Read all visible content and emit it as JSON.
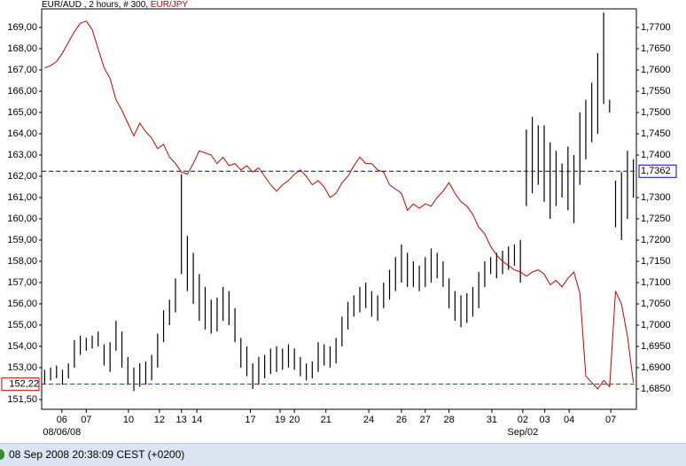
{
  "chart_data": {
    "type": "ohlc",
    "title": ", 2 hours, # 300,",
    "xlim": [
      0,
      100
    ],
    "xticks": [
      {
        "value": 3.4,
        "label": "06"
      },
      {
        "value": 7.5,
        "label": "07"
      },
      {
        "value": 14.6,
        "label": "10"
      },
      {
        "value": 19.8,
        "label": "12"
      },
      {
        "value": 23.5,
        "label": "13"
      },
      {
        "value": 26.1,
        "label": "14"
      },
      {
        "value": 35.1,
        "label": "17"
      },
      {
        "value": 40.1,
        "label": "19"
      },
      {
        "value": 42.5,
        "label": "20"
      },
      {
        "value": 47.8,
        "label": "21"
      },
      {
        "value": 55,
        "label": "24"
      },
      {
        "value": 60.5,
        "label": "26"
      },
      {
        "value": 64.5,
        "label": "27"
      },
      {
        "value": 68.5,
        "label": "28"
      },
      {
        "value": 75.7,
        "label": "31"
      },
      {
        "value": 80.9,
        "label": "02"
      },
      {
        "value": 84.6,
        "label": "03"
      },
      {
        "value": 88.7,
        "label": "04"
      },
      {
        "value": 95.7,
        "label": "07"
      }
    ],
    "xticks2": [
      {
        "value": 3.4,
        "label": "08/06/08"
      },
      {
        "value": 80.9,
        "label": "Sep/02"
      }
    ],
    "ylim": [
      151.04,
      169.875
    ],
    "yticks": [
      {
        "value": 151.5,
        "label": "151,50"
      },
      {
        "value": 153,
        "label": "153,00"
      },
      {
        "value": 154,
        "label": "154,00"
      },
      {
        "value": 155,
        "label": "155,00"
      },
      {
        "value": 156,
        "label": "156,00"
      },
      {
        "value": 157,
        "label": "157,00"
      },
      {
        "value": 158,
        "label": "158,00"
      },
      {
        "value": 159,
        "label": "159,00"
      },
      {
        "value": 160,
        "label": "160,00"
      },
      {
        "value": 161,
        "label": "161,00"
      },
      {
        "value": 162,
        "label": "162,00"
      },
      {
        "value": 163,
        "label": "163,00"
      },
      {
        "value": 164,
        "label": "164,00"
      },
      {
        "value": 165,
        "label": "165,00"
      },
      {
        "value": 166,
        "label": "166,00"
      },
      {
        "value": 167,
        "label": "167,00"
      },
      {
        "value": 168,
        "label": "168,00"
      },
      {
        "value": 169,
        "label": "169,00"
      }
    ],
    "y2lim": [
      1.68021,
      1.77438
    ],
    "y2ticks": [
      {
        "value": 1.685,
        "label": "1,6850"
      },
      {
        "value": 1.69,
        "label": "1,6900"
      },
      {
        "value": 1.695,
        "label": "1,6950"
      },
      {
        "value": 1.7,
        "label": "1,7000"
      },
      {
        "value": 1.705,
        "label": "1,7050"
      },
      {
        "value": 1.71,
        "label": "1,7100"
      },
      {
        "value": 1.715,
        "label": "1,7150"
      },
      {
        "value": 1.72,
        "label": "1,7200"
      },
      {
        "value": 1.725,
        "label": "1,7250"
      },
      {
        "value": 1.73,
        "label": "1,7300"
      },
      {
        "value": 1.74,
        "label": "1,7400"
      },
      {
        "value": 1.745,
        "label": "1,7450"
      },
      {
        "value": 1.75,
        "label": "1,7500"
      },
      {
        "value": 1.755,
        "label": "1,7550"
      },
      {
        "value": 1.76,
        "label": "1,7600"
      },
      {
        "value": 1.765,
        "label": "1,7650"
      },
      {
        "value": 1.77,
        "label": "1,7700"
      }
    ],
    "y_marker": {
      "value": 152.22,
      "label": "152,22",
      "color": "#cc0000"
    },
    "y2_marker": {
      "value": 1.7362,
      "label": "1,7362",
      "color": "#0000cc"
    },
    "grid": false,
    "series": [
      {
        "name": "EUR/AUD",
        "type": "ohlc",
        "axis": "y2",
        "color": "#000000",
        "high": [
          1.6895,
          1.69,
          1.6905,
          1.6895,
          1.691,
          1.6965,
          1.6975,
          1.697,
          1.6975,
          1.6985,
          1.6955,
          1.696,
          1.701,
          1.6985,
          1.6925,
          1.69,
          1.691,
          1.6915,
          1.693,
          1.698,
          1.7035,
          1.706,
          1.711,
          1.7355,
          1.721,
          1.717,
          1.712,
          1.709,
          1.706,
          1.7065,
          1.709,
          1.708,
          1.704,
          1.697,
          1.695,
          1.691,
          1.6925,
          1.693,
          1.6945,
          1.695,
          1.6945,
          1.6955,
          1.6945,
          1.6925,
          1.691,
          1.6915,
          1.696,
          1.6955,
          1.695,
          1.697,
          1.702,
          1.7055,
          1.707,
          1.709,
          1.71,
          1.708,
          1.707,
          1.71,
          1.713,
          1.716,
          1.719,
          1.717,
          1.715,
          1.714,
          1.716,
          1.718,
          1.717,
          1.715,
          1.711,
          1.708,
          1.707,
          1.7075,
          1.709,
          1.7125,
          1.715,
          1.716,
          1.717,
          1.7175,
          1.7185,
          1.719,
          1.72,
          1.746,
          1.749,
          1.747,
          1.747,
          1.743,
          1.741,
          1.738,
          1.742,
          1.74,
          1.75,
          1.753,
          1.757,
          1.764,
          1.7735,
          1.753,
          1.734,
          1.736,
          1.741,
          1.739
        ],
        "low": [
          1.686,
          1.687,
          1.6875,
          1.686,
          1.6875,
          1.69,
          1.693,
          1.694,
          1.6945,
          1.695,
          1.6905,
          1.689,
          1.694,
          1.69,
          1.686,
          1.6845,
          1.6855,
          1.686,
          1.687,
          1.69,
          1.696,
          1.7,
          1.703,
          1.712,
          1.708,
          1.705,
          1.701,
          1.699,
          1.698,
          1.6985,
          1.701,
          1.7,
          1.696,
          1.69,
          1.688,
          1.685,
          1.686,
          1.6875,
          1.6885,
          1.689,
          1.6895,
          1.69,
          1.6895,
          1.688,
          1.687,
          1.6875,
          1.689,
          1.6905,
          1.69,
          1.691,
          1.695,
          1.699,
          1.702,
          1.703,
          1.704,
          1.702,
          1.701,
          1.704,
          1.706,
          1.708,
          1.71,
          1.709,
          1.709,
          1.708,
          1.709,
          1.71,
          1.711,
          1.709,
          1.704,
          1.701,
          1.6995,
          1.7005,
          1.702,
          1.704,
          1.709,
          1.712,
          1.711,
          1.712,
          1.713,
          1.714,
          1.71,
          1.728,
          1.731,
          1.733,
          1.729,
          1.725,
          1.728,
          1.73,
          1.727,
          1.724,
          1.733,
          1.739,
          1.743,
          1.745,
          1.752,
          1.75,
          1.723,
          1.72,
          1.725,
          1.73
        ]
      },
      {
        "name": "EUR/JPY",
        "type": "line",
        "axis": "y",
        "color": "#cc0000",
        "values": [
          167.1,
          167.2,
          167.4,
          167.8,
          168.3,
          168.8,
          169.2,
          169.3,
          168.9,
          168,
          167.1,
          166.6,
          165.6,
          165.1,
          164.5,
          163.9,
          164.5,
          164.1,
          163.8,
          163.3,
          163.5,
          162.9,
          162.6,
          162.2,
          162.1,
          162.6,
          163.2,
          163.1,
          163,
          162.6,
          162.9,
          162.5,
          162.6,
          162.3,
          162.5,
          162.2,
          162.4,
          162,
          161.6,
          161.3,
          161.6,
          161.8,
          162.1,
          162.3,
          162,
          161.6,
          161.8,
          161.5,
          161,
          161.2,
          161.7,
          162,
          162.5,
          162.9,
          162.6,
          162.6,
          162.3,
          162.2,
          161.6,
          161.4,
          161.2,
          160.4,
          160.7,
          160.5,
          160.7,
          160.6,
          161,
          161.3,
          161.7,
          161.2,
          160.8,
          160.6,
          160.2,
          159.6,
          159.3,
          158.7,
          158.3,
          158,
          157.8,
          157.6,
          157.5,
          157.3,
          157.5,
          157.6,
          157.4,
          156.9,
          157.1,
          156.8,
          157.2,
          157.5,
          156.5,
          152.6,
          152.3,
          152,
          152.4,
          152.1,
          156.6,
          156,
          154.5,
          152.3
        ]
      }
    ]
  },
  "status_bar": "08 Sep 2008 20:38:09  CEST (+0200)"
}
